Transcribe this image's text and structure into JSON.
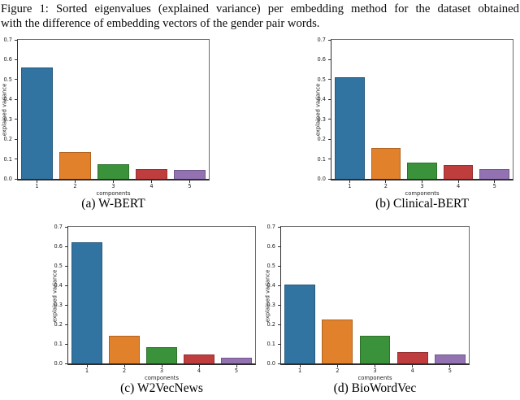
{
  "figure_caption": {
    "line1": "Figure 1:  Sorted eigenvalues (explained variance) per embedding method for the dataset obtained",
    "line2": "with the difference of embedding vectors of the gender pair words."
  },
  "palette": [
    "#3274a1",
    "#e1812c",
    "#3a923a",
    "#c03d3e",
    "#9372b2"
  ],
  "chart_data": [
    {
      "type": "bar",
      "label": "(a) W-BERT",
      "categories": [
        "1",
        "2",
        "3",
        "4",
        "5"
      ],
      "values": [
        0.56,
        0.135,
        0.075,
        0.05,
        0.045
      ],
      "xlabel": "components",
      "ylabel": "explained variance",
      "ylim": [
        0.0,
        0.7
      ],
      "yticks": [
        "0.0",
        "0.1",
        "0.2",
        "0.3",
        "0.4",
        "0.5",
        "0.6",
        "0.7"
      ],
      "grid": false,
      "legend": "none"
    },
    {
      "type": "bar",
      "label": "(b) Clinical-BERT",
      "categories": [
        "1",
        "2",
        "3",
        "4",
        "5"
      ],
      "values": [
        0.51,
        0.155,
        0.08,
        0.07,
        0.05
      ],
      "xlabel": "components",
      "ylabel": "explained variance",
      "ylim": [
        0.0,
        0.7
      ],
      "yticks": [
        "0.0",
        "0.1",
        "0.2",
        "0.3",
        "0.4",
        "0.5",
        "0.6",
        "0.7"
      ],
      "grid": false,
      "legend": "none"
    },
    {
      "type": "bar",
      "label": "(c) W2VecNews",
      "categories": [
        "1",
        "2",
        "3",
        "4",
        "5"
      ],
      "values": [
        0.62,
        0.14,
        0.085,
        0.045,
        0.03
      ],
      "xlabel": "components",
      "ylabel": "explained variance",
      "ylim": [
        0.0,
        0.7
      ],
      "yticks": [
        "0.0",
        "0.1",
        "0.2",
        "0.3",
        "0.4",
        "0.5",
        "0.6",
        "0.7"
      ],
      "grid": false,
      "legend": "none"
    },
    {
      "type": "bar",
      "label": "(d) BioWordVec",
      "categories": [
        "1",
        "2",
        "3",
        "4",
        "5"
      ],
      "values": [
        0.405,
        0.225,
        0.14,
        0.06,
        0.045
      ],
      "xlabel": "components",
      "ylabel": "explained variance",
      "ylim": [
        0.0,
        0.7
      ],
      "yticks": [
        "0.0",
        "0.1",
        "0.2",
        "0.3",
        "0.4",
        "0.5",
        "0.6",
        "0.7"
      ],
      "grid": false,
      "legend": "none"
    }
  ]
}
